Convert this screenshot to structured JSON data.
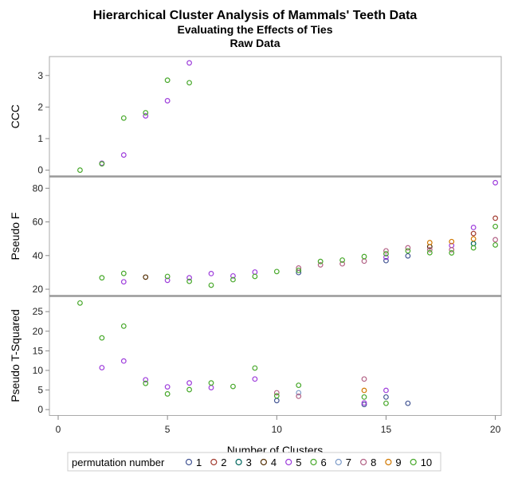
{
  "chart_data": {
    "type": "scatter",
    "title": "Hierarchical Cluster Analysis of Mammals' Teeth Data",
    "subtitle": "Evaluating the Effects of Ties",
    "subtitle2": "Raw Data",
    "xlabel": "Number of Clusters",
    "xlim": [
      0,
      20
    ],
    "xticks": [
      0,
      5,
      10,
      15,
      20
    ],
    "panels": [
      {
        "key": "ccc",
        "ylabel": "CCC",
        "ylim": [
          -0.2,
          3.6
        ],
        "yticks": [
          0,
          1,
          2,
          3
        ]
      },
      {
        "key": "pseudo_f",
        "ylabel": "Pseudo F",
        "ylim": [
          16,
          87
        ],
        "yticks": [
          20,
          40,
          60,
          80
        ]
      },
      {
        "key": "pseudo_t2",
        "ylabel": "Pseudo T-Squared",
        "ylim": [
          -1.5,
          29
        ],
        "yticks": [
          0,
          5,
          10,
          15,
          20,
          25
        ]
      }
    ],
    "legend": {
      "title": "permutation number",
      "position": "bottom"
    },
    "series": [
      {
        "name": "1",
        "color": "#445694",
        "ccc": [],
        "pseudo_f": [
          [
            11,
            29.9
          ],
          [
            15,
            37.0
          ],
          [
            16,
            39.8
          ]
        ],
        "pseudo_t2": [
          [
            10,
            2.3
          ],
          [
            14,
            1.3
          ],
          [
            15,
            3.2
          ],
          [
            16,
            1.6
          ]
        ]
      },
      {
        "name": "2",
        "color": "#A23A2E",
        "ccc": [],
        "pseudo_f": [
          [
            19,
            53.1
          ],
          [
            20,
            62.2
          ]
        ],
        "pseudo_t2": []
      },
      {
        "name": "3",
        "color": "#01665E",
        "ccc": [],
        "pseudo_f": [
          [
            19,
            47.1
          ]
        ],
        "pseudo_t2": []
      },
      {
        "name": "4",
        "color": "#543005",
        "ccc": [],
        "pseudo_f": [
          [
            4,
            27.2
          ],
          [
            17,
            45.3
          ]
        ],
        "pseudo_t2": []
      },
      {
        "name": "5",
        "color": "#9D3CDB",
        "ccc": [
          [
            2,
            0.22
          ],
          [
            3,
            0.48
          ],
          [
            4,
            1.72
          ],
          [
            5,
            2.2
          ],
          [
            6,
            3.4
          ]
        ],
        "pseudo_f": [
          [
            3,
            24.4
          ],
          [
            5,
            25.3
          ],
          [
            6,
            26.8
          ],
          [
            7,
            29.3
          ],
          [
            8,
            27.9
          ],
          [
            9,
            30.2
          ],
          [
            15,
            39.0
          ],
          [
            18,
            46.0
          ],
          [
            19,
            56.7
          ],
          [
            20,
            83.3
          ]
        ],
        "pseudo_t2": [
          [
            2,
            10.7
          ],
          [
            3,
            12.4
          ],
          [
            4,
            7.6
          ],
          [
            5,
            5.8
          ],
          [
            6,
            6.8
          ],
          [
            7,
            5.6
          ],
          [
            9,
            7.8
          ],
          [
            14,
            1.7
          ],
          [
            15,
            4.9
          ]
        ]
      },
      {
        "name": "6",
        "color": "#47A82A",
        "ccc": [],
        "pseudo_f": [],
        "pseudo_t2": []
      },
      {
        "name": "7",
        "color": "#7E9CC9",
        "ccc": [],
        "pseudo_f": [],
        "pseudo_t2": [
          [
            11,
            4.3
          ]
        ]
      },
      {
        "name": "8",
        "color": "#B26084",
        "ccc": [],
        "pseudo_f": [
          [
            11,
            32.6
          ],
          [
            12,
            34.5
          ],
          [
            13,
            35.1
          ],
          [
            14,
            36.7
          ],
          [
            15,
            42.8
          ],
          [
            16,
            44.6
          ],
          [
            17,
            43.5
          ],
          [
            18,
            43.5
          ],
          [
            20,
            49.4
          ]
        ],
        "pseudo_t2": [
          [
            10,
            4.3
          ],
          [
            11,
            3.4
          ],
          [
            14,
            7.8
          ]
        ]
      },
      {
        "name": "9",
        "color": "#D17800",
        "ccc": [],
        "pseudo_f": [
          [
            17,
            47.7
          ],
          [
            18,
            48.3
          ],
          [
            19,
            49.9
          ]
        ],
        "pseudo_t2": [
          [
            14,
            4.9
          ]
        ]
      },
      {
        "name": "10",
        "color": "#47A82A",
        "ccc": [
          [
            1,
            0
          ],
          [
            2,
            0.2
          ],
          [
            3,
            1.65
          ],
          [
            4,
            1.82
          ],
          [
            5,
            2.85
          ],
          [
            6,
            2.77
          ]
        ],
        "pseudo_f": [
          [
            2,
            26.8
          ],
          [
            3,
            29.4
          ],
          [
            5,
            27.6
          ],
          [
            6,
            24.7
          ],
          [
            7,
            22.4
          ],
          [
            8,
            25.7
          ],
          [
            9,
            27.6
          ],
          [
            10,
            30.5
          ],
          [
            11,
            31.2
          ],
          [
            12,
            36.5
          ],
          [
            13,
            37.3
          ],
          [
            14,
            39.4
          ],
          [
            15,
            41.1
          ],
          [
            16,
            42.8
          ],
          [
            17,
            41.7
          ],
          [
            18,
            41.6
          ],
          [
            19,
            44.6
          ],
          [
            20,
            57.3
          ],
          [
            20,
            46.3
          ]
        ],
        "pseudo_t2": [
          [
            1,
            27.2
          ],
          [
            2,
            18.3
          ],
          [
            3,
            21.3
          ],
          [
            4,
            6.7
          ],
          [
            5,
            4.0
          ],
          [
            6,
            5.1
          ],
          [
            7,
            6.8
          ],
          [
            8,
            5.9
          ],
          [
            9,
            10.6
          ],
          [
            10,
            3.5
          ],
          [
            11,
            6.2
          ],
          [
            14,
            3.2
          ],
          [
            15,
            1.6
          ]
        ]
      }
    ]
  }
}
